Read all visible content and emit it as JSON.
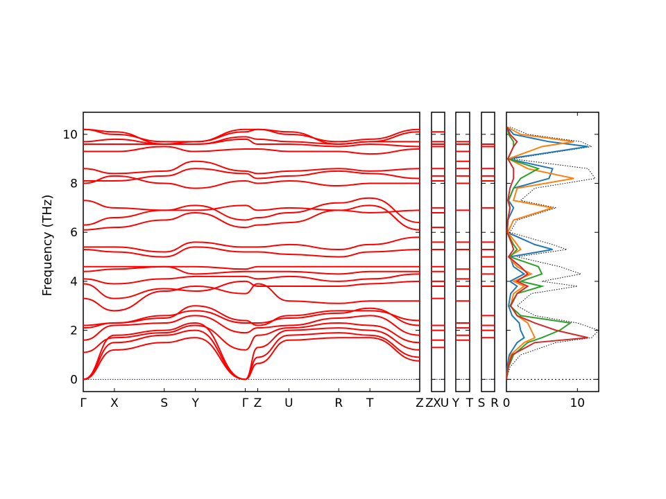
{
  "chart_data": [
    {
      "type": "line",
      "panel": "band-structure",
      "ylabel": "Frequency (THz)",
      "ylim": [
        -0.5,
        10.9
      ],
      "yticks": [
        0,
        2,
        4,
        6,
        8,
        10
      ],
      "colors": {
        "bands": "#ff0000",
        "zero_line": "#0000cc"
      },
      "xticks": [
        {
          "label": "Γ",
          "x": 0.0
        },
        {
          "label": "X",
          "x": 0.5
        },
        {
          "label": "S",
          "x": 1.3
        },
        {
          "label": "Y",
          "x": 1.8
        },
        {
          "label": "Γ",
          "x": 2.6
        },
        {
          "label": "Z",
          "x": 2.8
        },
        {
          "label": "U",
          "x": 3.3
        },
        {
          "label": "R",
          "x": 4.1
        },
        {
          "label": "T",
          "x": 4.6
        },
        {
          "label": "Z",
          "x": 5.4
        }
      ],
      "series": [
        {
          "x": [
            0,
            0.5,
            1.3,
            1.8,
            2.6,
            2.8,
            3.3,
            4.1,
            4.6,
            5.4
          ],
          "values": [
            0,
            1.2,
            1.5,
            1.7,
            0,
            0.65,
            1.6,
            1.7,
            1.7,
            0.75
          ]
        },
        {
          "x": [
            0,
            0.5,
            1.3,
            1.8,
            2.6,
            2.8,
            3.3,
            4.1,
            4.6,
            5.4
          ],
          "values": [
            0,
            1.5,
            1.8,
            2.0,
            0,
            0.9,
            1.8,
            1.9,
            1.8,
            0.9
          ]
        },
        {
          "x": [
            0,
            0.5,
            1.3,
            1.8,
            2.6,
            2.8,
            3.3,
            4.1,
            4.6,
            5.4
          ],
          "values": [
            0,
            1.8,
            2.0,
            2.3,
            0,
            1.3,
            2.0,
            2.1,
            2.0,
            1.2
          ]
        },
        {
          "x": [
            0,
            0.5,
            1.3,
            1.8,
            2.6,
            2.8,
            3.3,
            4.1,
            4.6,
            5.4
          ],
          "values": [
            1.1,
            1.7,
            1.9,
            2.2,
            1.2,
            1.8,
            2.1,
            2.3,
            2.2,
            1.5
          ]
        },
        {
          "x": [
            0,
            0.5,
            1.3,
            1.8,
            2.6,
            2.8,
            3.3,
            4.1,
            4.6,
            5.4
          ],
          "values": [
            1.6,
            2.2,
            2.3,
            2.6,
            1.9,
            2.1,
            2.2,
            2.5,
            2.6,
            1.8
          ]
        },
        {
          "x": [
            0,
            0.5,
            1.3,
            1.8,
            2.6,
            2.8,
            3.3,
            4.1,
            4.6,
            5.4
          ],
          "values": [
            2.1,
            2.3,
            2.6,
            2.8,
            2.3,
            2.3,
            2.5,
            2.7,
            2.9,
            2.2
          ]
        },
        {
          "x": [
            0,
            0.5,
            1.3,
            1.8,
            2.6,
            2.8,
            3.3,
            4.1,
            4.6,
            5.4
          ],
          "values": [
            2.2,
            2.3,
            2.5,
            3.0,
            2.4,
            2.2,
            2.6,
            2.8,
            2.8,
            2.4
          ]
        },
        {
          "x": [
            0,
            0.5,
            1.3,
            1.8,
            2.6,
            2.8,
            3.3,
            4.1,
            4.6,
            5.4
          ],
          "values": [
            3.3,
            2.8,
            3.6,
            3.8,
            3.5,
            3.9,
            3.2,
            3.1,
            3.2,
            3.2
          ]
        },
        {
          "x": [
            0,
            0.5,
            1.3,
            1.8,
            2.6,
            2.8,
            3.3,
            4.1,
            4.6,
            5.4
          ],
          "values": [
            3.9,
            3.3,
            3.7,
            3.6,
            4.0,
            3.8,
            3.8,
            3.8,
            3.9,
            4.0
          ]
        },
        {
          "x": [
            0,
            0.5,
            1.3,
            1.8,
            2.6,
            2.8,
            3.3,
            4.1,
            4.6,
            5.4
          ],
          "values": [
            4.1,
            3.9,
            4.1,
            4.2,
            4.2,
            4.1,
            4.2,
            4.0,
            4.1,
            4.3
          ]
        },
        {
          "x": [
            0,
            0.5,
            1.3,
            1.8,
            2.6,
            2.8,
            3.3,
            4.1,
            4.6,
            5.4
          ],
          "values": [
            4.4,
            4.5,
            4.6,
            4.3,
            4.4,
            4.4,
            4.4,
            4.3,
            4.4,
            4.4
          ]
        },
        {
          "x": [
            0,
            0.5,
            1.3,
            1.8,
            2.6,
            2.8,
            3.3,
            4.1,
            4.6,
            5.4
          ],
          "values": [
            4.6,
            4.6,
            4.6,
            4.6,
            4.5,
            4.6,
            4.6,
            4.6,
            4.6,
            4.6
          ]
        },
        {
          "x": [
            0,
            0.5,
            1.3,
            1.8,
            2.6,
            2.8,
            3.3,
            4.1,
            4.6,
            5.4
          ],
          "values": [
            5.3,
            5.2,
            5.0,
            5.4,
            5.2,
            5.2,
            5.1,
            5.0,
            5.2,
            5.3
          ]
        },
        {
          "x": [
            0,
            0.5,
            1.3,
            1.8,
            2.6,
            2.8,
            3.3,
            4.1,
            4.6,
            5.4
          ],
          "values": [
            5.4,
            5.4,
            5.2,
            5.6,
            5.4,
            5.4,
            5.5,
            5.3,
            5.5,
            5.8
          ]
        },
        {
          "x": [
            0,
            0.5,
            1.3,
            1.8,
            2.6,
            2.8,
            3.3,
            4.1,
            4.6,
            5.4
          ],
          "values": [
            6.1,
            6.2,
            6.5,
            6.8,
            6.2,
            6.3,
            6.4,
            6.9,
            7.1,
            6.1
          ]
        },
        {
          "x": [
            0,
            0.5,
            1.3,
            1.8,
            2.6,
            2.8,
            3.3,
            4.1,
            4.6,
            5.4
          ],
          "values": [
            6.3,
            6.6,
            6.9,
            7.1,
            6.5,
            6.6,
            6.8,
            7.2,
            7.4,
            6.4
          ]
        },
        {
          "x": [
            0,
            0.5,
            1.3,
            1.8,
            2.6,
            2.8,
            3.3,
            4.1,
            4.6,
            5.4
          ],
          "values": [
            7.3,
            7.0,
            6.9,
            6.9,
            7.1,
            6.9,
            7.0,
            6.9,
            6.8,
            6.9
          ]
        },
        {
          "x": [
            0,
            0.5,
            1.3,
            1.8,
            2.6,
            2.8,
            3.3,
            4.1,
            4.6,
            5.4
          ],
          "values": [
            8.0,
            8.3,
            8.0,
            7.8,
            8.1,
            8.0,
            8.1,
            7.9,
            8.0,
            8.0
          ]
        },
        {
          "x": [
            0,
            0.5,
            1.3,
            1.8,
            2.6,
            2.8,
            3.3,
            4.1,
            4.6,
            5.4
          ],
          "values": [
            8.1,
            8.1,
            8.3,
            8.6,
            8.4,
            8.2,
            8.3,
            8.5,
            8.4,
            8.2
          ]
        },
        {
          "x": [
            0,
            0.5,
            1.3,
            1.8,
            2.6,
            2.8,
            3.3,
            4.1,
            4.6,
            5.4
          ],
          "values": [
            8.6,
            8.4,
            8.5,
            8.9,
            8.5,
            8.4,
            8.5,
            8.6,
            8.5,
            8.6
          ]
        },
        {
          "x": [
            0,
            0.5,
            1.3,
            1.8,
            2.6,
            2.8,
            3.3,
            4.1,
            4.6,
            5.4
          ],
          "values": [
            9.3,
            9.3,
            9.5,
            9.3,
            9.4,
            9.4,
            9.3,
            9.3,
            9.2,
            9.4
          ]
        },
        {
          "x": [
            0,
            0.5,
            1.3,
            1.8,
            2.6,
            2.8,
            3.3,
            4.1,
            4.6,
            5.4
          ],
          "values": [
            9.6,
            9.6,
            9.6,
            9.6,
            9.8,
            9.6,
            9.6,
            9.5,
            9.6,
            9.5
          ]
        },
        {
          "x": [
            0,
            0.5,
            1.3,
            1.8,
            2.6,
            2.8,
            3.3,
            4.1,
            4.6,
            5.4
          ],
          "values": [
            9.7,
            9.8,
            9.6,
            9.6,
            9.9,
            9.8,
            9.7,
            9.6,
            9.7,
            9.7
          ]
        },
        {
          "x": [
            0,
            0.5,
            1.3,
            1.8,
            2.6,
            2.8,
            3.3,
            4.1,
            4.6,
            5.4
          ],
          "values": [
            10.2,
            10.0,
            9.7,
            9.7,
            10.1,
            10.2,
            10.0,
            9.7,
            9.8,
            10.2
          ]
        },
        {
          "x": [
            0,
            0.5,
            1.3,
            1.8,
            2.6,
            2.8,
            3.3,
            4.1,
            4.6,
            5.4
          ],
          "values": [
            10.2,
            10.1,
            9.6,
            9.7,
            10.2,
            10.2,
            10.1,
            9.6,
            9.7,
            10.1
          ]
        }
      ]
    },
    {
      "type": "line",
      "panel": "segment-ZX-U",
      "xticks": [
        {
          "label": "Z"
        },
        {
          "label": "X"
        },
        {
          "label": "U"
        }
      ],
      "levels": [
        1.3,
        1.6,
        2.0,
        2.2,
        3.3,
        3.8,
        4.0,
        4.4,
        4.6,
        5.3,
        5.6,
        6.2,
        6.8,
        7.0,
        8.1,
        8.3,
        8.6,
        9.5,
        9.6,
        9.7,
        10.1
      ]
    },
    {
      "type": "line",
      "panel": "segment-Y-T",
      "xticks": [
        {
          "label": "Y"
        },
        {
          "label": "T"
        }
      ],
      "levels": [
        1.6,
        1.8,
        2.1,
        2.3,
        3.2,
        3.8,
        4.1,
        4.5,
        5.3,
        5.6,
        6.9,
        8.0,
        8.3,
        8.6,
        8.9,
        9.3,
        9.6,
        9.7
      ]
    },
    {
      "type": "line",
      "panel": "segment-S-R",
      "xticks": [
        {
          "label": "S"
        },
        {
          "label": "R"
        }
      ],
      "levels": [
        1.7,
        2.0,
        2.2,
        2.6,
        3.8,
        4.3,
        4.6,
        5.0,
        5.3,
        5.6,
        7.0,
        8.1,
        8.3,
        8.6,
        9.5,
        9.6
      ]
    },
    {
      "type": "line",
      "panel": "dos",
      "xlim": [
        0,
        13
      ],
      "xticks": [
        0,
        10
      ],
      "colors": {
        "total": "#000000",
        "blue": "#1f77b4",
        "orange": "#ff7f0e",
        "green": "#2ca02c",
        "red": "#d62728"
      },
      "y": [
        0,
        0.5,
        1.0,
        1.5,
        1.7,
        2.0,
        2.3,
        2.6,
        3.0,
        3.5,
        3.8,
        4.0,
        4.3,
        4.6,
        5.0,
        5.3,
        5.5,
        6.0,
        6.5,
        7.0,
        7.3,
        7.8,
        8.2,
        8.6,
        9.0,
        9.5,
        9.7,
        10.0,
        10.3
      ],
      "series": [
        {
          "color_key": "total",
          "values": [
            0,
            0.5,
            2.0,
            7.0,
            12.0,
            13.0,
            10.0,
            4.0,
            1.5,
            3.5,
            10.0,
            5.0,
            10.5,
            7.5,
            1.5,
            8.5,
            6.5,
            0.5,
            1.5,
            7.0,
            2.0,
            4.0,
            12.5,
            11.5,
            0.8,
            12.0,
            10.5,
            3.0,
            0.5
          ]
        },
        {
          "color_key": "blue",
          "values": [
            0,
            0.1,
            0.4,
            1.5,
            2.5,
            2.0,
            1.8,
            0.8,
            0.3,
            0.6,
            1.5,
            0.5,
            2.5,
            1.0,
            0.5,
            6.5,
            4.0,
            0.1,
            0.2,
            1.0,
            0.3,
            1.0,
            6.0,
            6.5,
            0.2,
            11.5,
            6.0,
            1.0,
            0.1
          ]
        },
        {
          "color_key": "orange",
          "values": [
            0,
            0.2,
            0.6,
            2.5,
            4.0,
            3.5,
            3.0,
            1.5,
            0.6,
            1.0,
            2.5,
            1.0,
            3.5,
            1.5,
            0.3,
            2.0,
            1.5,
            0.2,
            1.0,
            6.5,
            1.0,
            1.5,
            9.5,
            3.0,
            0.3,
            5.0,
            9.5,
            2.0,
            0.1
          ]
        },
        {
          "color_key": "green",
          "values": [
            0,
            0.3,
            1.0,
            3.0,
            5.0,
            7.5,
            9.0,
            2.0,
            0.5,
            1.5,
            5.0,
            2.0,
            5.0,
            4.5,
            0.5,
            1.5,
            1.0,
            0.1,
            0.2,
            0.5,
            0.3,
            1.0,
            2.0,
            4.5,
            0.2,
            1.0,
            1.0,
            0.3,
            0.1
          ]
        },
        {
          "color_key": "red",
          "values": [
            0,
            0.2,
            0.8,
            4.0,
            11.5,
            7.0,
            4.0,
            1.5,
            0.6,
            1.5,
            3.0,
            1.5,
            3.0,
            2.0,
            0.3,
            1.0,
            0.8,
            0.1,
            0.2,
            0.5,
            0.2,
            0.5,
            1.0,
            1.0,
            0.2,
            1.0,
            1.5,
            0.5,
            0.1
          ]
        }
      ]
    }
  ]
}
